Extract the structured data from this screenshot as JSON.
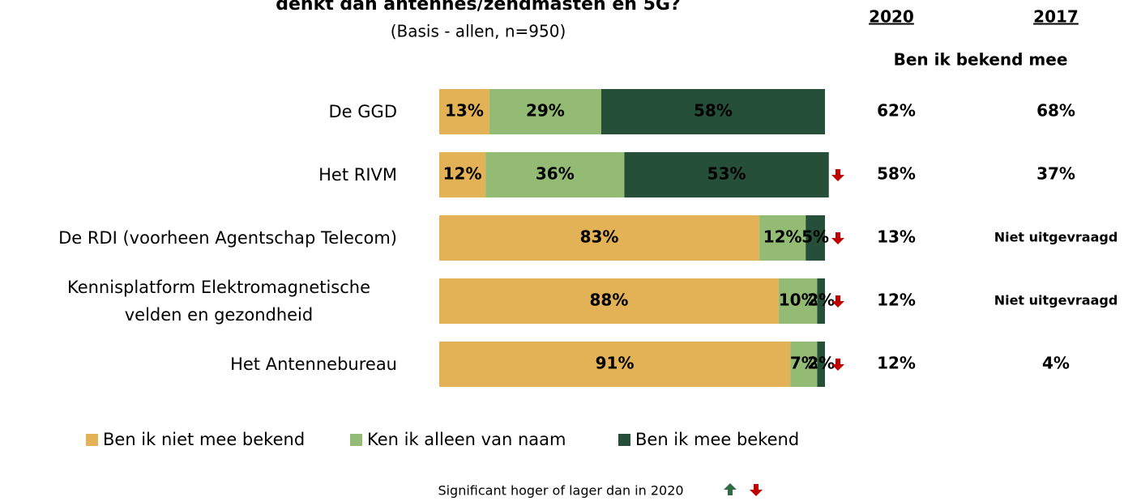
{
  "chart_data": {
    "type": "stacked_barh",
    "title": "denkt dan antennes/zendmasten en 5G?",
    "subtitle": "(Basis - allen, n=950)",
    "categories": [
      "De GGD",
      "Het RIVM",
      "De RDI (voorheen Agentschap Telecom)",
      "Kennisplatform Elektromagnetische velden en gezondheid",
      "Het Antennebureau"
    ],
    "xlim": [
      0,
      100
    ],
    "series": [
      {
        "name": "Ben ik niet mee bekend",
        "color": "#e3b256",
        "values": [
          13,
          12,
          83,
          88,
          91
        ],
        "value_labels": [
          "13%",
          "12%",
          "83%",
          "88%",
          "91%"
        ]
      },
      {
        "name": "Ken ik alleen van naam",
        "color": "#93bb74",
        "values": [
          29,
          36,
          12,
          10,
          7
        ],
        "value_labels": [
          "29%",
          "36%",
          "12%",
          "10%",
          "7%"
        ]
      },
      {
        "name": "Ben ik mee bekend",
        "color": "#254f38",
        "values": [
          58,
          53,
          5,
          2,
          2
        ],
        "value_labels": [
          "58%",
          "53%",
          "5%",
          "2%",
          "2%"
        ]
      }
    ],
    "significance": [
      null,
      "down",
      "down",
      "down",
      "down"
    ],
    "significance_colors": {
      "up": "#2f6b45",
      "down": "#c00000"
    },
    "footnote": "Significant hoger of lager dan in 2020",
    "table": {
      "columns": [
        "2020",
        "2017"
      ],
      "header": "Ben ik bekend mee",
      "rows": [
        [
          "62%",
          "68%"
        ],
        [
          "58%",
          "37%"
        ],
        [
          "13%",
          "Niet uitgevraagd"
        ],
        [
          "12%",
          "Niet uitgevraagd"
        ],
        [
          "12%",
          "4%"
        ]
      ]
    }
  }
}
